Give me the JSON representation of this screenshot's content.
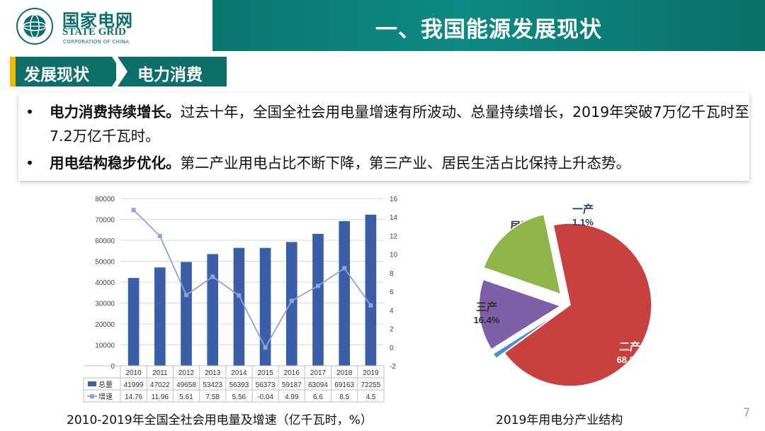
{
  "brand": {
    "name_cn": "国家电网",
    "name_en": "STATE GRID",
    "sub": "CORPORATION OF CHINA"
  },
  "header": {
    "title": "一、我国能源发展现状"
  },
  "breadcrumb": {
    "section": "发展现状",
    "subsection": "电力消费"
  },
  "bullets": [
    {
      "bold": "电力消费持续增长。",
      "text": "过去十年，全国全社会用电量增速有所波动、总量持续增长，2019年突破7万亿千瓦时至7.2万亿千瓦时。"
    },
    {
      "bold": "用电结构稳步优化。",
      "text": "第二产业用电占比不断下降，第三产业、居民生活占比保持上升态势。"
    }
  ],
  "chart_data": [
    {
      "type": "bar",
      "title": "",
      "categories": [
        "2010",
        "2011",
        "2012",
        "2013",
        "2014",
        "2015",
        "2016",
        "2017",
        "2018",
        "2019"
      ],
      "series": [
        {
          "name": "总量",
          "type": "bar",
          "axis": "left",
          "values": [
            41999,
            47022,
            49658,
            53423,
            56393,
            56373,
            59187,
            63094,
            69163,
            72255
          ],
          "color": "#3a5ea8"
        },
        {
          "name": "增速",
          "type": "line",
          "axis": "right",
          "values": [
            14.76,
            11.96,
            5.61,
            7.58,
            5.56,
            -0.04,
            4.99,
            6.6,
            8.5,
            4.5
          ],
          "color": "#8fa3d6"
        }
      ],
      "ylim_left": [
        0,
        80000
      ],
      "ylim_right": [
        -2,
        16
      ],
      "yticks_left": [
        "0",
        "10000",
        "20000",
        "30000",
        "40000",
        "50000",
        "60000",
        "70000",
        "80000"
      ],
      "yticks_right": [
        "-2",
        "0",
        "2",
        "4",
        "6",
        "8",
        "10",
        "12",
        "14",
        "16"
      ],
      "table": {
        "total_row": [
          "41999",
          "47022",
          "49658",
          "53423",
          "56393",
          "56373",
          "59187",
          "63094",
          "69163",
          "72255"
        ],
        "rate_row": [
          "14.76",
          "11.96",
          "5.61",
          "7.58",
          "5.56",
          "-0.04",
          "4.99",
          "6.6",
          "8.5",
          "4.5"
        ]
      },
      "grid": true,
      "caption": "2010-2019年全国全社会用电量及增速（亿千瓦时，%）"
    },
    {
      "type": "pie",
      "slices": [
        {
          "label": "二产",
          "value": 68.3,
          "pct": "68.3%",
          "color": "#c8413f"
        },
        {
          "label": "一产",
          "value": 1.1,
          "pct": "1.1%",
          "color": "#4a8fd4"
        },
        {
          "label": "居民",
          "value": 14.2,
          "pct": "14.2%",
          "color": "#7d5fa8"
        },
        {
          "label": "三产",
          "value": 16.4,
          "pct": "16.4%",
          "color": "#8fb54a"
        }
      ],
      "caption": "2019年用电分产业结构"
    }
  ],
  "page_number": "7"
}
